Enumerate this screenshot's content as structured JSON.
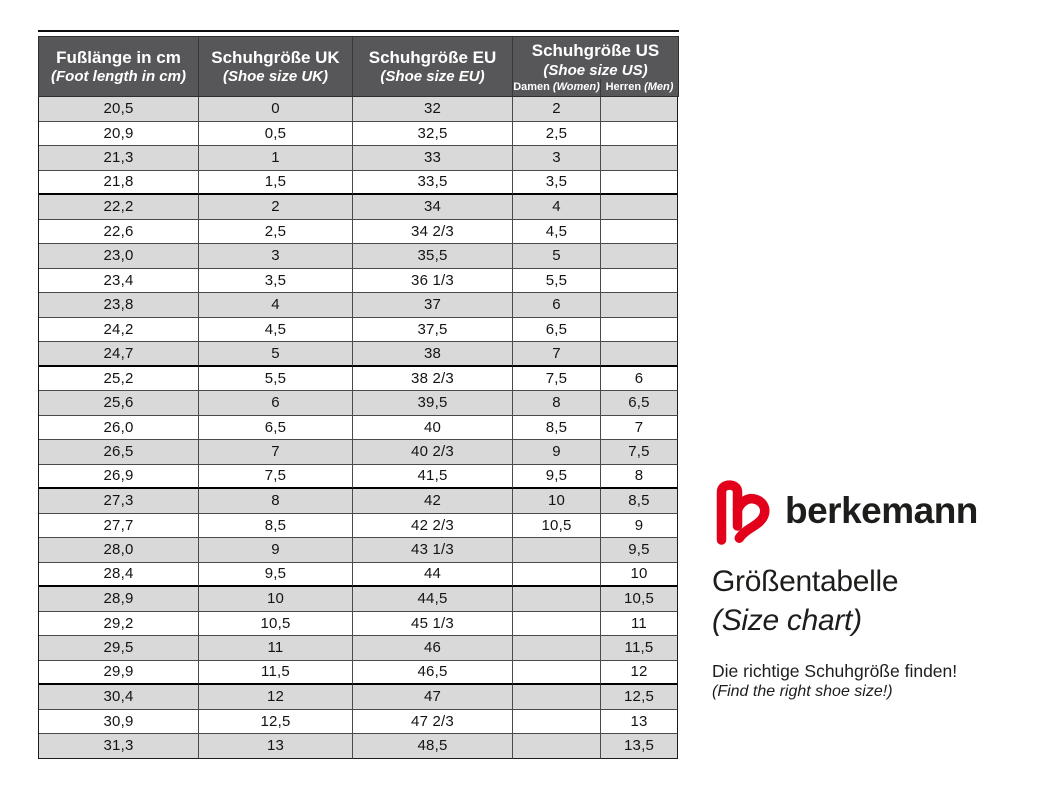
{
  "chart_data": {
    "type": "table",
    "title": "Größentabelle",
    "subtitle": "(Size chart)",
    "columns": [
      {
        "label": "Fußlänge in cm",
        "sublabel": "(Foot length in cm)"
      },
      {
        "label": "Schuhgröße UK",
        "sublabel": "(Shoe size UK)"
      },
      {
        "label": "Schuhgröße EU",
        "sublabel": "(Shoe size EU)"
      },
      {
        "label": "Schuhgröße US",
        "sublabel": "(Shoe size US)",
        "subcolumns": [
          {
            "label": "Damen",
            "sublabel": "(Women)"
          },
          {
            "label": "Herren",
            "sublabel": "(Men)"
          }
        ]
      }
    ],
    "rows": [
      [
        "20,5",
        "0",
        "32",
        "2",
        ""
      ],
      [
        "20,9",
        "0,5",
        "32,5",
        "2,5",
        ""
      ],
      [
        "21,3",
        "1",
        "33",
        "3",
        ""
      ],
      [
        "21,8",
        "1,5",
        "33,5",
        "3,5",
        ""
      ],
      [
        "22,2",
        "2",
        "34",
        "4",
        ""
      ],
      [
        "22,6",
        "2,5",
        "34 2/3",
        "4,5",
        ""
      ],
      [
        "23,0",
        "3",
        "35,5",
        "5",
        ""
      ],
      [
        "23,4",
        "3,5",
        "36 1/3",
        "5,5",
        ""
      ],
      [
        "23,8",
        "4",
        "37",
        "6",
        ""
      ],
      [
        "24,2",
        "4,5",
        "37,5",
        "6,5",
        ""
      ],
      [
        "24,7",
        "5",
        "38",
        "7",
        ""
      ],
      [
        "25,2",
        "5,5",
        "38 2/3",
        "7,5",
        "6"
      ],
      [
        "25,6",
        "6",
        "39,5",
        "8",
        "6,5"
      ],
      [
        "26,0",
        "6,5",
        "40",
        "8,5",
        "7"
      ],
      [
        "26,5",
        "7",
        "40 2/3",
        "9",
        "7,5"
      ],
      [
        "26,9",
        "7,5",
        "41,5",
        "9,5",
        "8"
      ],
      [
        "27,3",
        "8",
        "42",
        "10",
        "8,5"
      ],
      [
        "27,7",
        "8,5",
        "42 2/3",
        "10,5",
        "9"
      ],
      [
        "28,0",
        "9",
        "43 1/3",
        "",
        "9,5"
      ],
      [
        "28,4",
        "9,5",
        "44",
        "",
        "10"
      ],
      [
        "28,9",
        "10",
        "44,5",
        "",
        "10,5"
      ],
      [
        "29,2",
        "10,5",
        "45 1/3",
        "",
        "11"
      ],
      [
        "29,5",
        "11",
        "46",
        "",
        "11,5"
      ],
      [
        "29,9",
        "11,5",
        "46,5",
        "",
        "12"
      ],
      [
        "30,4",
        "12",
        "47",
        "",
        "12,5"
      ],
      [
        "30,9",
        "12,5",
        "47 2/3",
        "",
        "13"
      ],
      [
        "31,3",
        "13",
        "48,5",
        "",
        "13,5"
      ]
    ],
    "group_separators_after_row": [
      4,
      11,
      16,
      20,
      24
    ],
    "layout": {
      "row_alternating": true,
      "first_row_shaded": true
    }
  },
  "branding": {
    "brand": "berkemann",
    "logo": "berkemann-b-heart-mark",
    "brand_color": "#e2001a",
    "title": "Größentabelle",
    "title_en": "(Size chart)",
    "tagline": "Die richtige Schuhgröße finden!",
    "tagline_en": "(Find the right shoe size!)"
  },
  "colors": {
    "header_bg": "#57575a",
    "header_text": "#ffffff",
    "row_alt": "#d9d9d9",
    "row_base": "#ffffff",
    "border": "#1c1c1c",
    "text": "#1d1d1b",
    "accent_red": "#e2001a"
  }
}
